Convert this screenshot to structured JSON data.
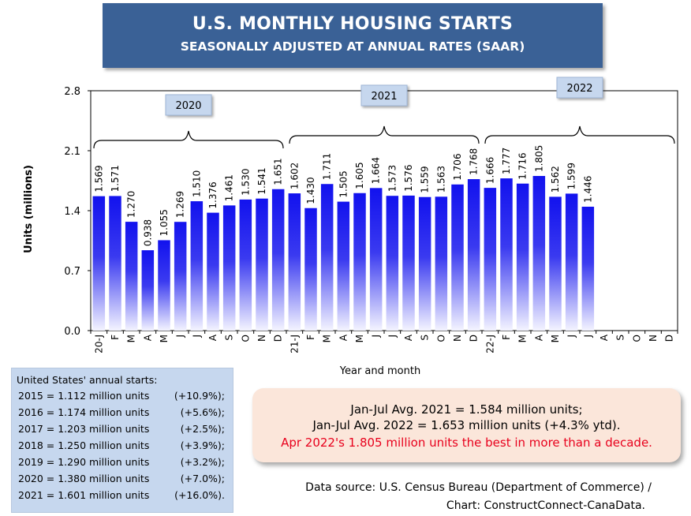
{
  "title": "U.S. MONTHLY HOUSING STARTS",
  "subtitle": "SEASONALLY ADJUSTED AT ANNUAL RATES (SAAR)",
  "colors": {
    "title_bg": "#3a6196",
    "bar_top": "#1212ee",
    "bar_bottom": "#ffffff",
    "highlight": "#e8001c"
  },
  "chart_data": {
    "type": "bar",
    "title": "U.S. MONTHLY HOUSING STARTS",
    "subtitle": "SEASONALLY ADJUSTED AT ANNUAL RATES (SAAR)",
    "xlabel": "Year and month",
    "ylabel": "Units (millions)",
    "ylim": [
      0,
      2.8
    ],
    "yticks": [
      "0.0",
      "0.7",
      "1.4",
      "2.1",
      "2.8"
    ],
    "grid": false,
    "categories": [
      "20-J",
      "F",
      "M",
      "A",
      "M",
      "J",
      "J",
      "A",
      "S",
      "O",
      "N",
      "D",
      "21-J",
      "F",
      "M",
      "A",
      "M",
      "J",
      "J",
      "A",
      "S",
      "O",
      "N",
      "D",
      "22-J",
      "F",
      "M",
      "A",
      "M",
      "J",
      "J",
      "A",
      "S",
      "O",
      "N",
      "D"
    ],
    "values": [
      1.569,
      1.571,
      1.27,
      0.938,
      1.055,
      1.269,
      1.51,
      1.376,
      1.461,
      1.53,
      1.541,
      1.651,
      1.602,
      1.43,
      1.711,
      1.505,
      1.605,
      1.664,
      1.573,
      1.576,
      1.559,
      1.563,
      1.706,
      1.768,
      1.666,
      1.777,
      1.716,
      1.805,
      1.562,
      1.599,
      1.446,
      null,
      null,
      null,
      null,
      null
    ],
    "value_labels": [
      "1.569",
      "1.571",
      "1.270",
      "0.938",
      "1.055",
      "1.269",
      "1.510",
      "1.376",
      "1.461",
      "1.530",
      "1.541",
      "1.651",
      "1.602",
      "1.430",
      "1.711",
      "1.505",
      "1.605",
      "1.664",
      "1.573",
      "1.576",
      "1.559",
      "1.563",
      "1.706",
      "1.768",
      "1.666",
      "1.777",
      "1.716",
      "1.805",
      "1.562",
      "1.599",
      "1.446",
      null,
      null,
      null,
      null,
      null
    ],
    "year_groups": [
      {
        "label": "2020",
        "start": 0,
        "end": 11
      },
      {
        "label": "2021",
        "start": 12,
        "end": 23
      },
      {
        "label": "2022",
        "start": 24,
        "end": 35
      }
    ]
  },
  "annual": {
    "header": "United States' annual starts:",
    "rows": [
      {
        "text": "2015 = 1.112 million units",
        "pct": "(+10.9%);"
      },
      {
        "text": "2016 = 1.174 million units",
        "pct": "(+5.6%);"
      },
      {
        "text": "2017 = 1.203 million units",
        "pct": "(+2.5%);"
      },
      {
        "text": "2018 = 1.250 million units",
        "pct": "(+3.9%);"
      },
      {
        "text": "2019 = 1.290 million units",
        "pct": "(+3.2%);"
      },
      {
        "text": "2020 = 1.380 million units",
        "pct": "(+7.0%);"
      },
      {
        "text": "2021 = 1.601 million units",
        "pct": "(+16.0%)."
      }
    ]
  },
  "averages": {
    "line1": "Jan-Jul Avg. 2021 = 1.584 million units;",
    "line2": "Jan-Jul Avg. 2022 = 1.653 million units (+4.3% ytd).",
    "line3": "Apr 2022's 1.805 million units the best in more than a decade."
  },
  "source": {
    "line1": "Data source: U.S. Census Bureau (Department of Commerce) /",
    "line2": "Chart: ConstructConnect-CanaData."
  }
}
